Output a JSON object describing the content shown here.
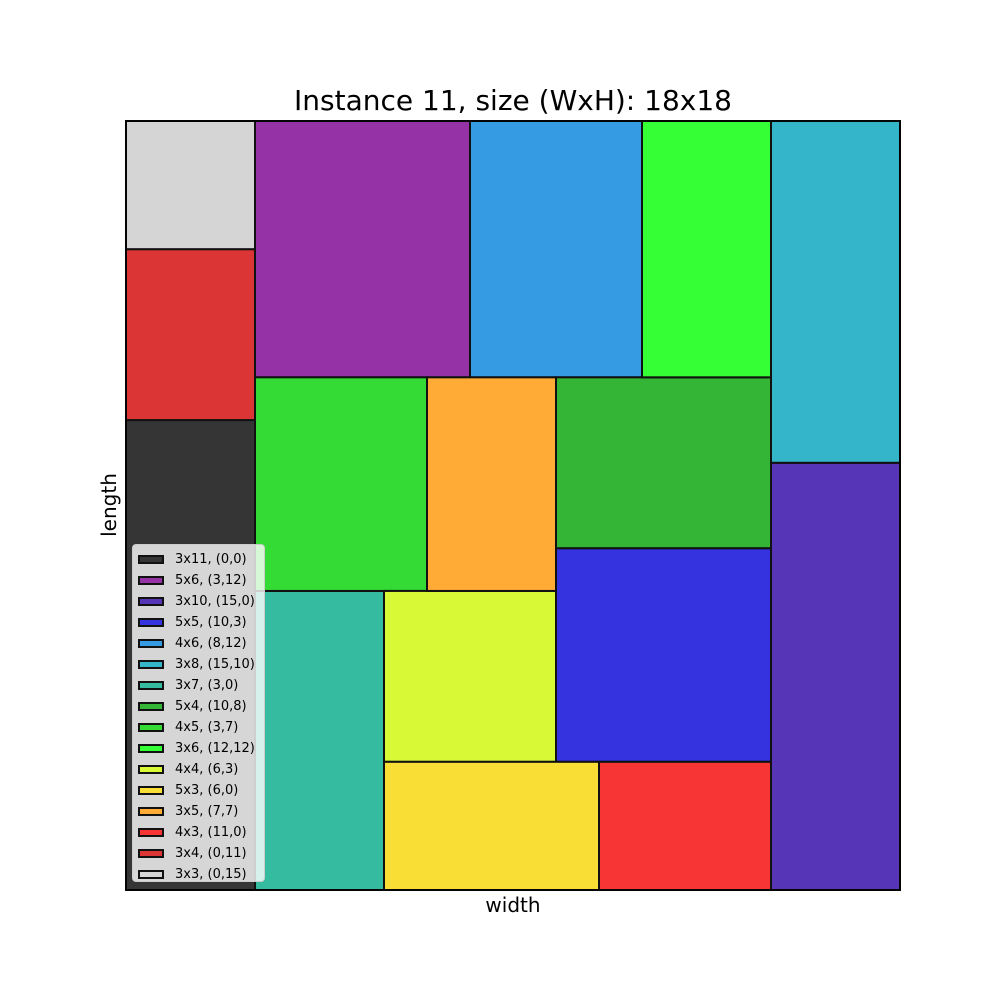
{
  "chart_data": {
    "type": "rectangle-packing",
    "title": "Instance 11, size (WxH): 18x18",
    "xlabel": "width",
    "ylabel": "length",
    "xlim": [
      0,
      18
    ],
    "ylim": [
      0,
      18
    ],
    "grid": false,
    "legend_position": "lower-left",
    "rectangles": [
      {
        "label": "3x11, (0,0)",
        "x": 0,
        "y": 0,
        "w": 3,
        "h": 11,
        "color": "#353535"
      },
      {
        "label": "5x6, (3,12)",
        "x": 3,
        "y": 12,
        "w": 5,
        "h": 6,
        "color": "#9533a6"
      },
      {
        "label": "3x10, (15,0)",
        "x": 15,
        "y": 0,
        "w": 3,
        "h": 10,
        "color": "#5635b6"
      },
      {
        "label": "5x5, (10,3)",
        "x": 10,
        "y": 3,
        "w": 5,
        "h": 5,
        "color": "#3533e0"
      },
      {
        "label": "4x6, (8,12)",
        "x": 8,
        "y": 12,
        "w": 4,
        "h": 6,
        "color": "#359be2"
      },
      {
        "label": "3x8, (15,10)",
        "x": 15,
        "y": 10,
        "w": 3,
        "h": 8,
        "color": "#35b5c9"
      },
      {
        "label": "3x7, (3,0)",
        "x": 3,
        "y": 0,
        "w": 3,
        "h": 7,
        "color": "#35bb9f"
      },
      {
        "label": "5x4, (10,8)",
        "x": 10,
        "y": 8,
        "w": 5,
        "h": 4,
        "color": "#35b535"
      },
      {
        "label": "4x5, (3,7)",
        "x": 3,
        "y": 7,
        "w": 4,
        "h": 5,
        "color": "#35db35"
      },
      {
        "label": "3x6, (12,12)",
        "x": 12,
        "y": 12,
        "w": 3,
        "h": 6,
        "color": "#35ff35"
      },
      {
        "label": "4x4, (6,3)",
        "x": 6,
        "y": 3,
        "w": 4,
        "h": 4,
        "color": "#d8f935"
      },
      {
        "label": "5x3, (6,0)",
        "x": 6,
        "y": 0,
        "w": 5,
        "h": 3,
        "color": "#f9df35"
      },
      {
        "label": "3x5, (7,7)",
        "x": 7,
        "y": 7,
        "w": 3,
        "h": 5,
        "color": "#ffab35"
      },
      {
        "label": "4x3, (11,0)",
        "x": 11,
        "y": 0,
        "w": 4,
        "h": 3,
        "color": "#f73535"
      },
      {
        "label": "3x4, (0,11)",
        "x": 0,
        "y": 11,
        "w": 3,
        "h": 4,
        "color": "#db3535"
      },
      {
        "label": "3x3, (0,15)",
        "x": 0,
        "y": 15,
        "w": 3,
        "h": 3,
        "color": "#d5d5d5"
      }
    ]
  }
}
